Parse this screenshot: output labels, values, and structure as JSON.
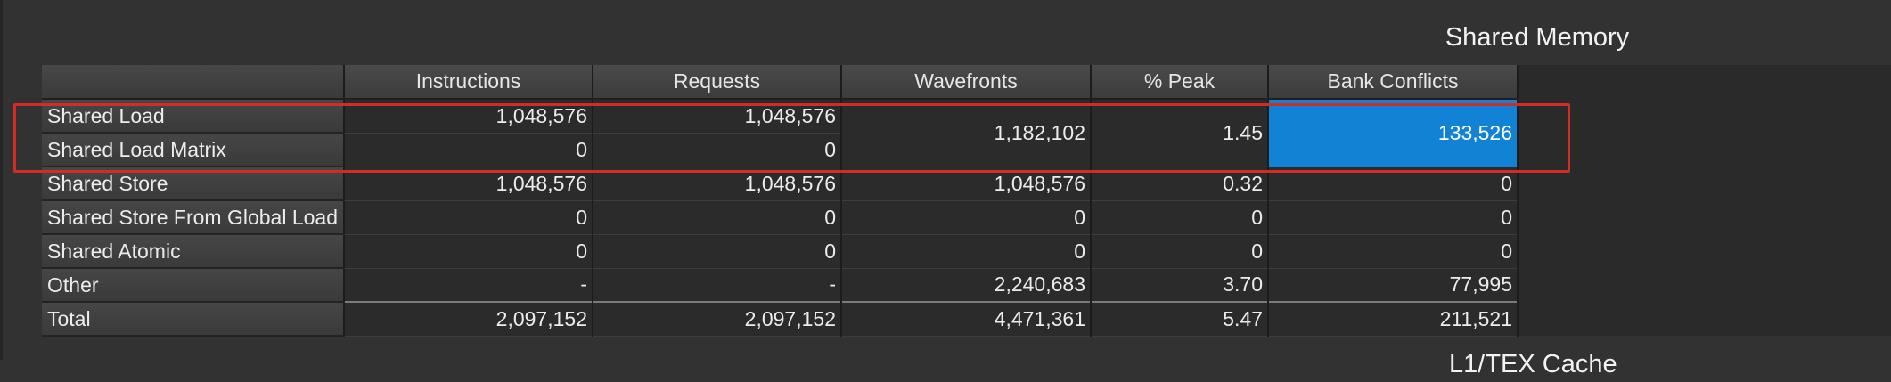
{
  "section_title": "Shared Memory",
  "next_section_title_partial": "L1/TEX Cache",
  "colors": {
    "highlight": "#1283d4",
    "selection_border": "#d42b25"
  },
  "table": {
    "columns": [
      "",
      "Instructions",
      "Requests",
      "Wavefronts",
      "% Peak",
      "Bank Conflicts"
    ],
    "rows": [
      {
        "label": "Shared Load",
        "instructions": "1,048,576",
        "requests": "1,048,576"
      },
      {
        "label": "Shared Load Matrix",
        "instructions": "0",
        "requests": "0"
      },
      {
        "label": "Shared Store",
        "instructions": "1,048,576",
        "requests": "1,048,576",
        "wavefronts": "1,048,576",
        "peak": "0.32",
        "bank_conflicts": "0"
      },
      {
        "label": "Shared Store From Global Load",
        "instructions": "0",
        "requests": "0",
        "wavefronts": "0",
        "peak": "0",
        "bank_conflicts": "0"
      },
      {
        "label": "Shared Atomic",
        "instructions": "0",
        "requests": "0",
        "wavefronts": "0",
        "peak": "0",
        "bank_conflicts": "0"
      },
      {
        "label": "Other",
        "instructions": "-",
        "requests": "-",
        "wavefronts": "2,240,683",
        "peak": "3.70",
        "bank_conflicts": "77,995"
      },
      {
        "label": "Total",
        "instructions": "2,097,152",
        "requests": "2,097,152",
        "wavefronts": "4,471,361",
        "peak": "5.47",
        "bank_conflicts": "211,521"
      }
    ],
    "merged_load": {
      "wavefronts": "1,182,102",
      "peak": "1.45",
      "bank_conflicts": "133,526"
    }
  }
}
